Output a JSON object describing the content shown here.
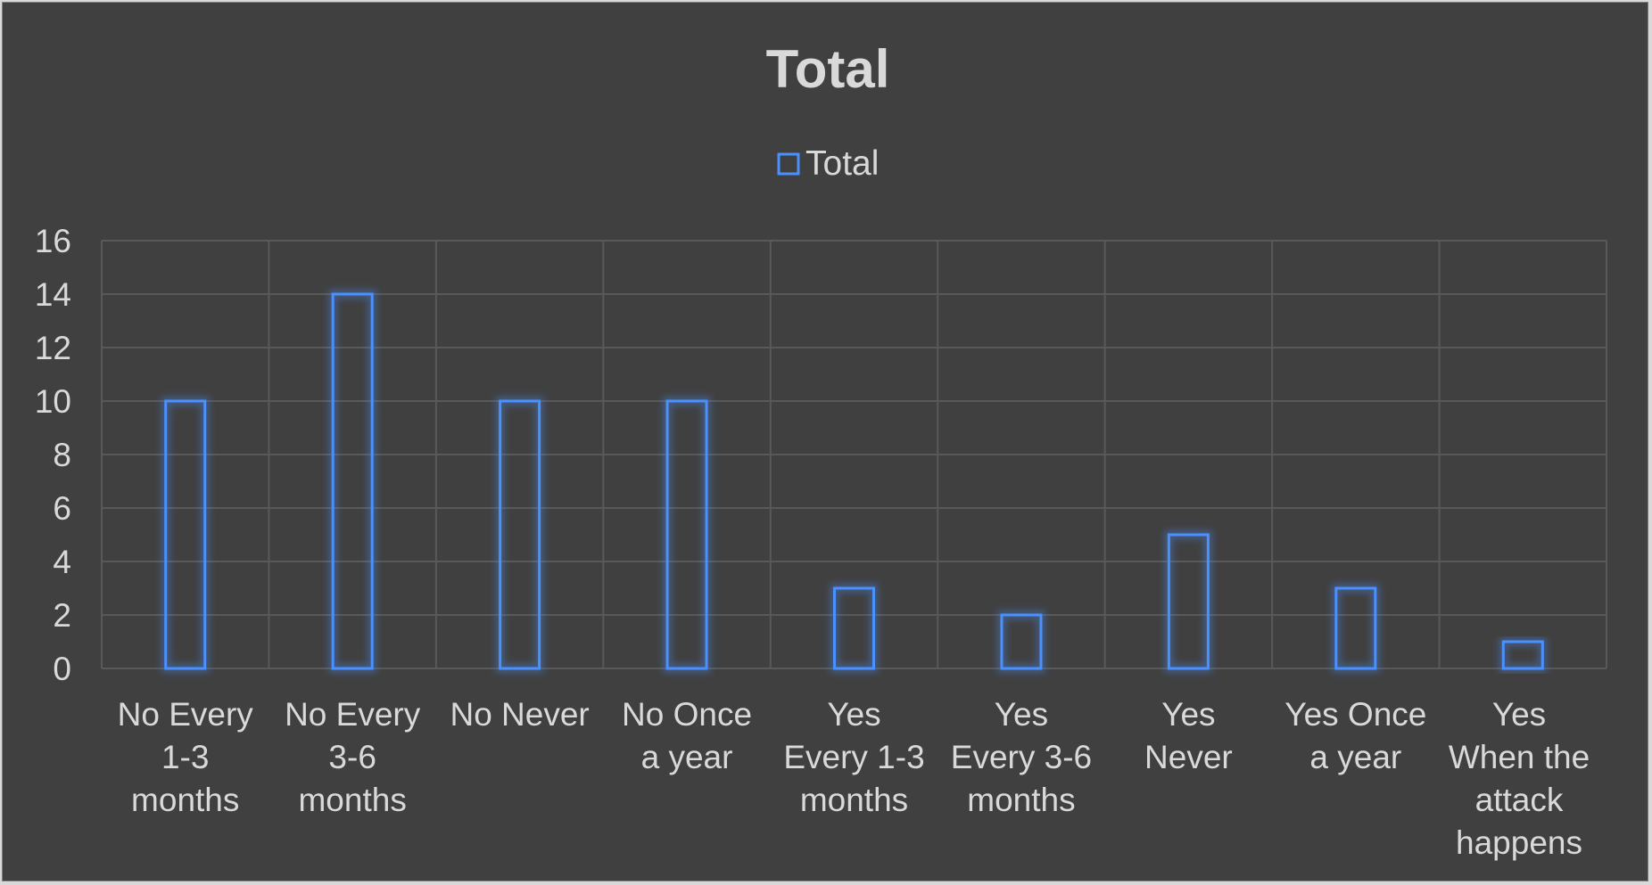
{
  "colors": {
    "background": "#404040",
    "series": "#4a90ff",
    "text": "#d9d9d9",
    "grid": "#595959"
  },
  "chart_data": {
    "type": "bar",
    "title": "Total",
    "legend": {
      "position": "top",
      "entries": [
        "Total"
      ]
    },
    "categories": [
      [
        "No Every",
        "1-3",
        "months"
      ],
      [
        "No Every",
        "3-6",
        "months"
      ],
      [
        "No Never"
      ],
      [
        "No Once",
        "a year"
      ],
      [
        "Yes",
        "Every 1-3",
        "months"
      ],
      [
        "Yes",
        "Every 3-6",
        "months"
      ],
      [
        "Yes",
        "Never"
      ],
      [
        "Yes Once",
        "a year"
      ],
      [
        "Yes",
        "When the",
        "attack",
        "happens"
      ]
    ],
    "series": [
      {
        "name": "Total",
        "values": [
          10,
          14,
          10,
          10,
          3,
          2,
          5,
          3,
          1
        ]
      }
    ],
    "yticks": [
      "0",
      "2",
      "4",
      "6",
      "8",
      "10",
      "12",
      "14",
      "16"
    ],
    "ylim": [
      0,
      16
    ],
    "grid": "both"
  }
}
